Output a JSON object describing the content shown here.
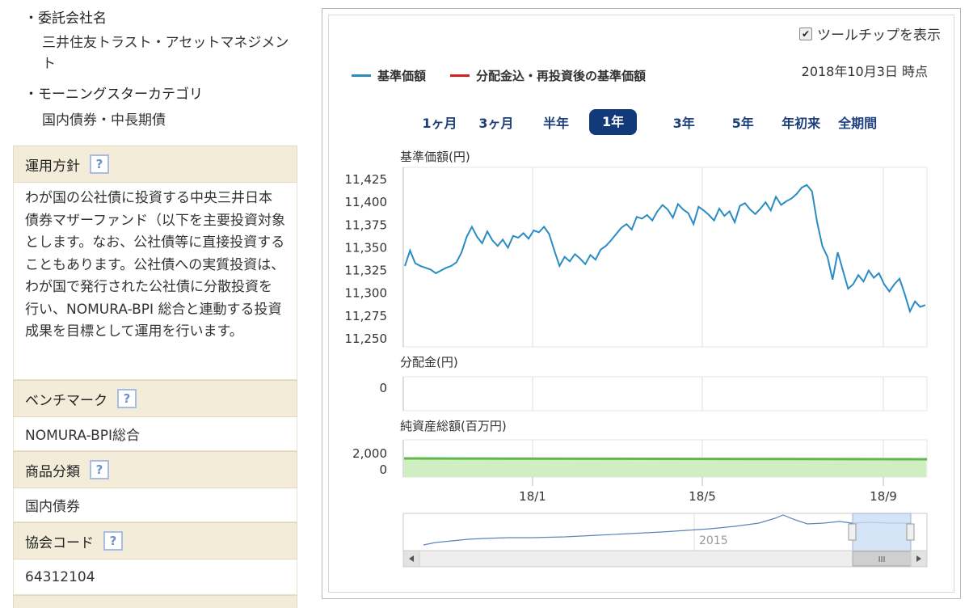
{
  "left": {
    "consignor_heading": "・委託会社名",
    "consignor_line1": "三井住友トラスト・アセットマネジメン",
    "consignor_line2": "ト",
    "category_heading": "・モーニングスターカテゴリ",
    "category_value": "国内債券・中長期債",
    "policy_label": "運用方針",
    "policy_text": "わが国の公社債に投資する中央三井日本債券マザーファンド（以下を主要投資対象とします。なお、公社債等に直接投資することもあります。公社債への実質投資は、わが国で発行された公社債に分散投資を行い、NOMURA-BPI 総合と連動する投資成果を目標として運用を行います。",
    "benchmark_label": "ベンチマーク",
    "benchmark_value": "NOMURA-BPI総合",
    "product_label": "商品分類",
    "product_value": "国内債券",
    "code_label": "協会コード",
    "code_value": "64312104",
    "help_glyph": "?"
  },
  "chart": {
    "tooltip_label": "ツールチップを表示",
    "tooltip_checked": true,
    "legend": [
      {
        "label": "基準価額",
        "color": "#2b8cc4"
      },
      {
        "label": "分配金込・再投資後の基準価額",
        "color": "#d62020"
      }
    ],
    "as_of": "2018年10月3日 時点",
    "periods": [
      "1ヶ月",
      "3ヶ月",
      "半年",
      "1年",
      "3年",
      "5年",
      "年初来",
      "全期間"
    ],
    "active_period": "1年",
    "nav_label": "基準価額(円)",
    "dist_label": "分配金(円)",
    "assets_label": "純資産総額(百万円)",
    "navigator_year": "2015",
    "scroll_grip": "III"
  },
  "chart_data": [
    {
      "type": "line",
      "title": "基準価額(円)",
      "ylim": [
        11250,
        11425
      ],
      "yticks": [
        "11,425",
        "11,400",
        "11,375",
        "11,350",
        "11,325",
        "11,300",
        "11,275",
        "11,250"
      ],
      "xticks": [
        "18/1",
        "18/5",
        "18/9"
      ],
      "series": [
        {
          "name": "基準価額",
          "color": "#2b8cc4",
          "values": [
            11330,
            11347,
            11333,
            11330,
            11328,
            11326,
            11322,
            11325,
            11328,
            11330,
            11334,
            11345,
            11362,
            11373,
            11362,
            11355,
            11368,
            11358,
            11352,
            11359,
            11350,
            11363,
            11361,
            11366,
            11360,
            11369,
            11367,
            11373,
            11365,
            11347,
            11330,
            11340,
            11335,
            11343,
            11338,
            11332,
            11342,
            11337,
            11348,
            11352,
            11358,
            11365,
            11372,
            11376,
            11370,
            11384,
            11382,
            11386,
            11380,
            11390,
            11397,
            11392,
            11383,
            11398,
            11392,
            11388,
            11376,
            11395,
            11391,
            11386,
            11380,
            11393,
            11385,
            11390,
            11378,
            11396,
            11399,
            11392,
            11387,
            11393,
            11400,
            11391,
            11406,
            11397,
            11401,
            11404,
            11409,
            11416,
            11419,
            11412,
            11378,
            11352,
            11340,
            11315,
            11345,
            11325,
            11305,
            11310,
            11320,
            11313,
            11325,
            11317,
            11322,
            11310,
            11302,
            11310,
            11316,
            11299,
            11280,
            11291,
            11285,
            11287
          ]
        }
      ]
    },
    {
      "type": "line",
      "title": "分配金(円)",
      "yticks": [
        "0"
      ],
      "series": [
        {
          "values": [
            0
          ]
        }
      ]
    },
    {
      "type": "area",
      "title": "純資産総額(百万円)",
      "yticks": [
        "2,000",
        "0"
      ],
      "series": [
        {
          "color": "#5fb84a",
          "values": [
            2000
          ]
        }
      ]
    }
  ]
}
